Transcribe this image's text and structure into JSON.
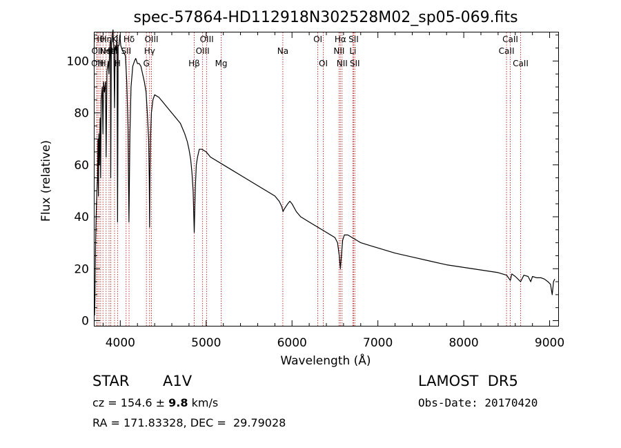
{
  "chart_data": {
    "type": "line",
    "title": "spec-57864-HD112918N302528M02_sp05-069.fits",
    "xlabel": "Wavelength (Å)",
    "ylabel": "Flux (relative)",
    "xlim": [
      3700,
      9100
    ],
    "ylim": [
      -2,
      111
    ],
    "xticks": [
      4000,
      5000,
      6000,
      7000,
      8000,
      9000
    ],
    "yticks": [
      0,
      20,
      40,
      60,
      80,
      100
    ],
    "grid": false,
    "series": [
      {
        "values": [
          [
            3700,
            2
          ],
          [
            3705,
            8
          ],
          [
            3712,
            30
          ],
          [
            3720,
            42
          ],
          [
            3728,
            50
          ],
          [
            3735,
            55
          ],
          [
            3740,
            70
          ],
          [
            3745,
            48
          ],
          [
            3750,
            72
          ],
          [
            3757,
            60
          ],
          [
            3765,
            78
          ],
          [
            3771,
            55
          ],
          [
            3778,
            85
          ],
          [
            3790,
            90
          ],
          [
            3798,
            72
          ],
          [
            3805,
            92
          ],
          [
            3815,
            88
          ],
          [
            3828,
            92
          ],
          [
            3835,
            63
          ],
          [
            3845,
            96
          ],
          [
            3860,
            100
          ],
          [
            3868,
            95
          ],
          [
            3875,
            103
          ],
          [
            3885,
            108
          ],
          [
            3889,
            55
          ],
          [
            3895,
            104
          ],
          [
            3905,
            110
          ],
          [
            3915,
            112
          ],
          [
            3925,
            104
          ],
          [
            3933,
            82
          ],
          [
            3940,
            106
          ],
          [
            3952,
            104
          ],
          [
            3962,
            110
          ],
          [
            3968,
            38
          ],
          [
            3975,
            106
          ],
          [
            3985,
            106
          ],
          [
            3995,
            110
          ],
          [
            4005,
            106
          ],
          [
            4025,
            104
          ],
          [
            4045,
            103
          ],
          [
            4060,
            102
          ],
          [
            4075,
            92
          ],
          [
            4090,
            75
          ],
          [
            4098,
            48
          ],
          [
            4101,
            38
          ],
          [
            4104,
            48
          ],
          [
            4112,
            72
          ],
          [
            4125,
            90
          ],
          [
            4145,
            98
          ],
          [
            4165,
            100
          ],
          [
            4180,
            101
          ],
          [
            4200,
            99
          ],
          [
            4220,
            99
          ],
          [
            4240,
            98
          ],
          [
            4260,
            95
          ],
          [
            4280,
            92
          ],
          [
            4300,
            88
          ],
          [
            4315,
            80
          ],
          [
            4330,
            70
          ],
          [
            4337,
            55
          ],
          [
            4341,
            36
          ],
          [
            4345,
            55
          ],
          [
            4352,
            70
          ],
          [
            4362,
            80
          ],
          [
            4380,
            85
          ],
          [
            4400,
            87
          ],
          [
            4450,
            86
          ],
          [
            4500,
            84
          ],
          [
            4550,
            82
          ],
          [
            4600,
            80
          ],
          [
            4650,
            78
          ],
          [
            4700,
            76
          ],
          [
            4750,
            72
          ],
          [
            4780,
            69
          ],
          [
            4800,
            66
          ],
          [
            4820,
            62
          ],
          [
            4835,
            57
          ],
          [
            4848,
            50
          ],
          [
            4855,
            42
          ],
          [
            4861,
            34
          ],
          [
            4867,
            42
          ],
          [
            4875,
            52
          ],
          [
            4885,
            60
          ],
          [
            4900,
            63
          ],
          [
            4920,
            66
          ],
          [
            4950,
            66
          ],
          [
            5000,
            65
          ],
          [
            5050,
            63
          ],
          [
            5100,
            62
          ],
          [
            5200,
            60
          ],
          [
            5300,
            58
          ],
          [
            5400,
            56
          ],
          [
            5500,
            54
          ],
          [
            5600,
            52
          ],
          [
            5700,
            50
          ],
          [
            5800,
            48
          ],
          [
            5850,
            46
          ],
          [
            5880,
            44
          ],
          [
            5895,
            42
          ],
          [
            5910,
            43
          ],
          [
            5950,
            45
          ],
          [
            5975,
            46
          ],
          [
            6000,
            45
          ],
          [
            6050,
            42
          ],
          [
            6100,
            40
          ],
          [
            6200,
            38
          ],
          [
            6300,
            36
          ],
          [
            6400,
            34
          ],
          [
            6450,
            33
          ],
          [
            6500,
            32
          ],
          [
            6530,
            30
          ],
          [
            6550,
            25
          ],
          [
            6563,
            20
          ],
          [
            6575,
            25
          ],
          [
            6590,
            31
          ],
          [
            6610,
            33
          ],
          [
            6650,
            33
          ],
          [
            6700,
            32
          ],
          [
            6800,
            30
          ],
          [
            6900,
            29
          ],
          [
            7000,
            28
          ],
          [
            7200,
            26
          ],
          [
            7400,
            24.5
          ],
          [
            7600,
            23
          ],
          [
            7800,
            21.5
          ],
          [
            8000,
            20.5
          ],
          [
            8200,
            19.5
          ],
          [
            8400,
            18.5
          ],
          [
            8500,
            17.5
          ],
          [
            8542,
            15.5
          ],
          [
            8560,
            18
          ],
          [
            8600,
            17
          ],
          [
            8662,
            15
          ],
          [
            8700,
            17.5
          ],
          [
            8750,
            17
          ],
          [
            8780,
            15
          ],
          [
            8800,
            17
          ],
          [
            8850,
            16.5
          ],
          [
            8900,
            16.5
          ],
          [
            8940,
            16
          ],
          [
            8980,
            15
          ],
          [
            9010,
            14
          ],
          [
            9030,
            10
          ],
          [
            9045,
            15
          ],
          [
            9060,
            16
          ]
        ]
      }
    ],
    "lines": [
      {
        "wl": 3727,
        "label": "OII",
        "row": 2
      },
      {
        "wl": 3730,
        "label": "OII",
        "row": 1
      },
      {
        "wl": 3750,
        "label": "Hθ",
        "row": 0
      },
      {
        "wl": 3771,
        "label": "H",
        "row": 2
      },
      {
        "wl": 3798,
        "label": "H",
        "row": 2
      },
      {
        "wl": 3835,
        "label": "Hη",
        "row": 0
      },
      {
        "wl": 3869,
        "label": "NeIII",
        "row": 1
      },
      {
        "wl": 3889,
        "label": "HeI",
        "row": 1
      },
      {
        "wl": 3933,
        "label": "K",
        "row": 0
      },
      {
        "wl": 3968,
        "label": "H",
        "row": 2
      },
      {
        "wl": 4068,
        "label": "SII",
        "row": 1
      },
      {
        "wl": 4102,
        "label": "Hδ",
        "row": 0
      },
      {
        "wl": 4304,
        "label": "G",
        "row": 2
      },
      {
        "wl": 4341,
        "label": "Hγ",
        "row": 1
      },
      {
        "wl": 4363,
        "label": "OIII",
        "row": 0
      },
      {
        "wl": 4861,
        "label": "Hβ",
        "row": 2
      },
      {
        "wl": 4959,
        "label": "OIII",
        "row": 1
      },
      {
        "wl": 5007,
        "label": "OIII",
        "row": 0
      },
      {
        "wl": 5175,
        "label": "Mg",
        "row": 2
      },
      {
        "wl": 5893,
        "label": "Na",
        "row": 1
      },
      {
        "wl": 6300,
        "label": "OI",
        "row": 0
      },
      {
        "wl": 6364,
        "label": "OI",
        "row": 2
      },
      {
        "wl": 6548,
        "label": "NII",
        "row": 1
      },
      {
        "wl": 6563,
        "label": "Hα",
        "row": 0
      },
      {
        "wl": 6583,
        "label": "NII",
        "row": 2
      },
      {
        "wl": 6708,
        "label": "Li",
        "row": 1
      },
      {
        "wl": 6717,
        "label": "SII",
        "row": 0
      },
      {
        "wl": 6731,
        "label": "SII",
        "row": 2
      },
      {
        "wl": 8498,
        "label": "CaII",
        "row": 1
      },
      {
        "wl": 8542,
        "label": "CaII",
        "row": 0
      },
      {
        "wl": 8662,
        "label": "CaII",
        "row": 2
      }
    ]
  },
  "info": {
    "object_class": "STAR",
    "subclass": "A1V",
    "survey": "LAMOST  DR5",
    "cz_prefix": "cz = 154.6 ± ",
    "cz_err": "9.8",
    "cz_units": " km/s",
    "obs_date": "Obs-Date: 20170420",
    "coords": "RA = 171.83328, DEC =  29.79028"
  }
}
